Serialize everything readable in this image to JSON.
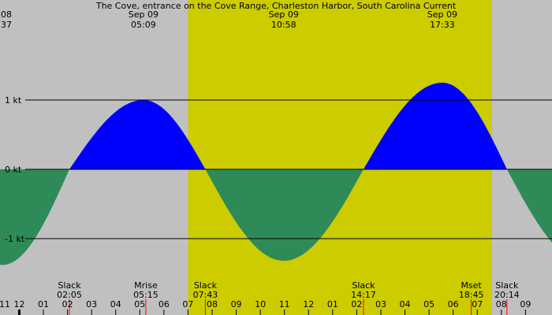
{
  "chart_data": {
    "type": "area",
    "title": "The Cove, entrance on the Cove Range, Charleston Harbor, South Carolina Current",
    "x_unit": "hour",
    "colors": {
      "background": "#c0c0c0",
      "daylight": "#cccc00",
      "flood": "#0000ff",
      "ebb": "#2e8b57",
      "line": "#000000",
      "marker": "#ff0000"
    },
    "y_ticks": [
      {
        "value": 1,
        "label": "1 kt"
      },
      {
        "value": 0,
        "label": "0 kt"
      },
      {
        "value": -1,
        "label": "-1 kt"
      }
    ],
    "ylim": [
      -1.55,
      2.45
    ],
    "xlim": [
      -0.8,
      22.1
    ],
    "daylight": [
      7.0,
      19.6
    ],
    "header_labels": [
      {
        "hour": -0.8,
        "line1": "08",
        "line2": "37",
        "anchor": "end"
      },
      {
        "hour": 5.15,
        "line1": "Sep 09",
        "line2": "05:09",
        "anchor": "middle"
      },
      {
        "hour": 10.97,
        "line1": "Sep 09",
        "line2": "10:58",
        "anchor": "middle"
      },
      {
        "hour": 17.55,
        "line1": "Sep 09",
        "line2": "17:33",
        "anchor": "middle"
      }
    ],
    "events": [
      {
        "hour": 2.08,
        "name": "Slack",
        "time": "02:05"
      },
      {
        "hour": 5.25,
        "name": "Mrise",
        "time": "05:15"
      },
      {
        "hour": 7.72,
        "name": "Slack",
        "time": "07:43"
      },
      {
        "hour": 14.28,
        "name": "Slack",
        "time": "14:17"
      },
      {
        "hour": 18.75,
        "name": "Mset",
        "time": "18:45"
      },
      {
        "hour": 20.23,
        "name": "Slack",
        "time": "20:14"
      }
    ],
    "slack_times": [
      -4.3,
      2.08,
      7.72,
      14.28,
      20.23,
      26.2
    ],
    "extremes": [
      {
        "hour": -0.7,
        "value": -1.38
      },
      {
        "hour": 5.15,
        "value": 1.0
      },
      {
        "hour": 10.97,
        "value": -1.32
      },
      {
        "hour": 17.55,
        "value": 1.25
      },
      {
        "hour": 23.5,
        "value": -1.35
      }
    ],
    "x_ticks": [
      {
        "hour": -1,
        "label": "11"
      },
      {
        "hour": 0,
        "label": "12"
      },
      {
        "hour": 1,
        "label": "01"
      },
      {
        "hour": 2,
        "label": "02"
      },
      {
        "hour": 3,
        "label": "03"
      },
      {
        "hour": 4,
        "label": "04"
      },
      {
        "hour": 5,
        "label": "05"
      },
      {
        "hour": 6,
        "label": "06"
      },
      {
        "hour": 7,
        "label": "07"
      },
      {
        "hour": 8,
        "label": "08"
      },
      {
        "hour": 9,
        "label": "09"
      },
      {
        "hour": 10,
        "label": "10"
      },
      {
        "hour": 11,
        "label": "11"
      },
      {
        "hour": 12,
        "label": "12"
      },
      {
        "hour": 13,
        "label": "01"
      },
      {
        "hour": 14,
        "label": "02"
      },
      {
        "hour": 15,
        "label": "03"
      },
      {
        "hour": 16,
        "label": "04"
      },
      {
        "hour": 17,
        "label": "05"
      },
      {
        "hour": 18,
        "label": "06"
      },
      {
        "hour": 19,
        "label": "07"
      },
      {
        "hour": 20,
        "label": "08"
      },
      {
        "hour": 21,
        "label": "09"
      }
    ]
  }
}
